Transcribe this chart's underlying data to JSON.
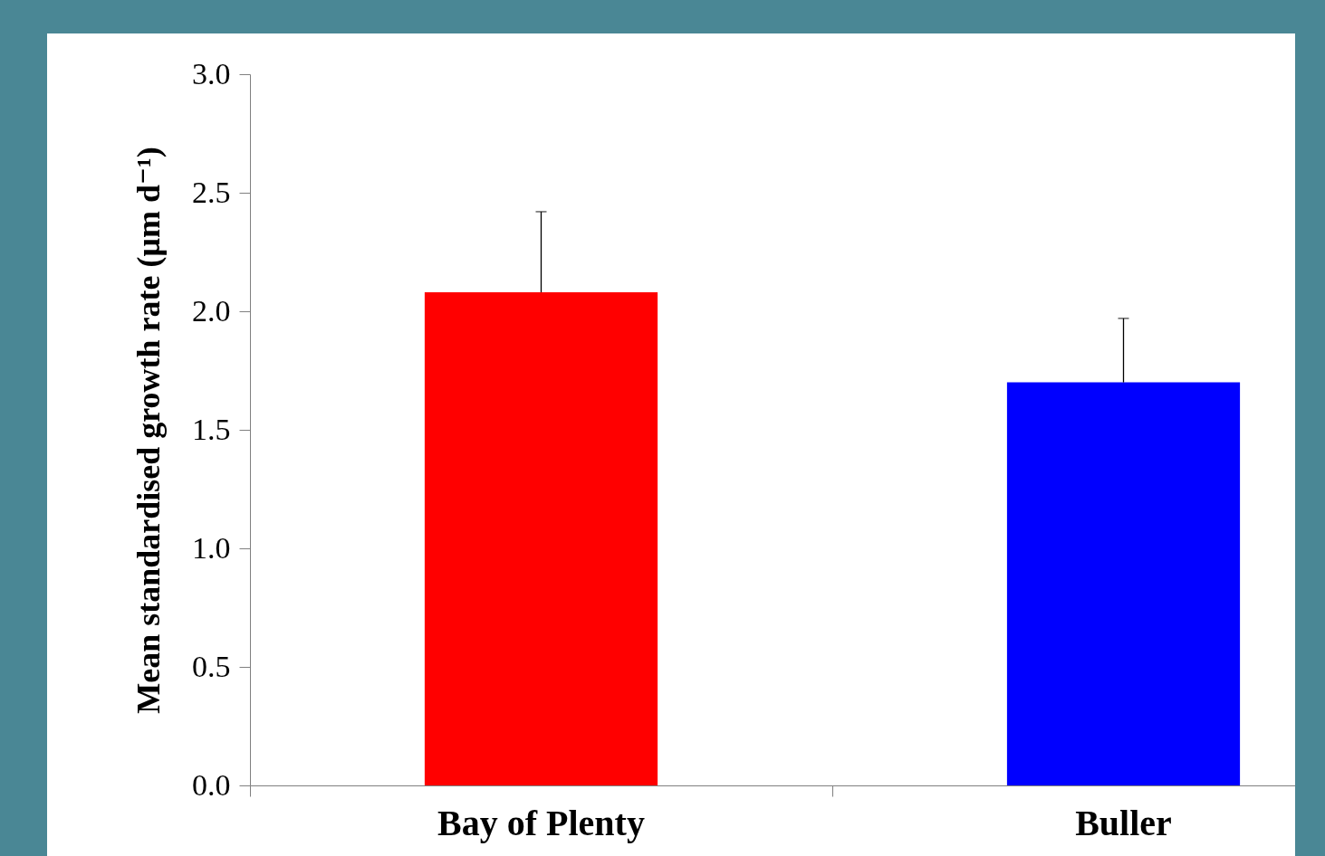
{
  "chart_data": {
    "type": "bar",
    "ylabel": "Mean standardised growth rate (μm d⁻¹)",
    "categories": [
      "Bay of Plenty",
      "Buller"
    ],
    "values": [
      2.08,
      1.7
    ],
    "colors": [
      "#ff0000",
      "#0000ff"
    ],
    "errors": [
      0.34,
      0.27
    ],
    "ylim": [
      0,
      3
    ],
    "yticks": [
      {
        "value": 0,
        "label": "0.0"
      },
      {
        "value": 0.5,
        "label": "0.5"
      },
      {
        "value": 1,
        "label": "1.0"
      },
      {
        "value": 1.5,
        "label": "1.5"
      },
      {
        "value": 2,
        "label": "2.0"
      },
      {
        "value": 2.5,
        "label": "2.5"
      },
      {
        "value": 3,
        "label": "3.0"
      }
    ],
    "grid": false
  }
}
